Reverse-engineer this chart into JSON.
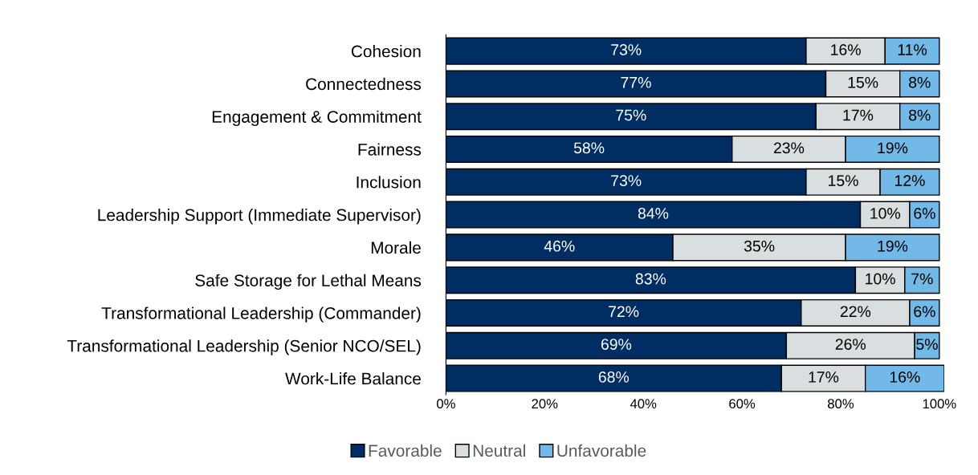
{
  "chart_data": {
    "type": "bar",
    "orientation": "horizontal",
    "stacked": true,
    "categories": [
      "Cohesion",
      "Connectedness",
      "Engagement & Commitment",
      "Fairness",
      "Inclusion",
      "Leadership Support (Immediate Supervisor)",
      "Morale",
      "Safe Storage for Lethal Means",
      "Transformational Leadership (Commander)",
      "Transformational Leadership (Senior NCO/SEL)",
      "Work-Life Balance"
    ],
    "series": [
      {
        "name": "Favorable",
        "color": "#002d62",
        "values": [
          73,
          77,
          75,
          58,
          73,
          84,
          46,
          83,
          72,
          69,
          68
        ],
        "value_labels": [
          "73%",
          "77%",
          "75%",
          "58%",
          "73%",
          "84%",
          "46%",
          "83%",
          "72%",
          "69%",
          "68%"
        ]
      },
      {
        "name": "Neutral",
        "color": "#d9dfe1",
        "values": [
          16,
          15,
          17,
          23,
          15,
          10,
          35,
          10,
          22,
          26,
          17
        ],
        "value_labels": [
          "16%",
          "15%",
          "17%",
          "23%",
          "15%",
          "10%",
          "35%",
          "10%",
          "22%",
          "26%",
          "17%"
        ]
      },
      {
        "name": "Unfavorable",
        "color": "#73b9e8",
        "values": [
          11,
          8,
          8,
          19,
          12,
          6,
          19,
          7,
          6,
          5,
          16
        ],
        "value_labels": [
          "11%",
          "8%",
          "8%",
          "19%",
          "12%",
          "6%",
          "19%",
          "7%",
          "6%",
          "5%",
          "16%"
        ]
      }
    ],
    "xlim": [
      0,
      101
    ],
    "xticks": [
      {
        "value": 0,
        "label": "0%"
      },
      {
        "value": 20,
        "label": "20%"
      },
      {
        "value": 40,
        "label": "40%"
      },
      {
        "value": 60,
        "label": "60%"
      },
      {
        "value": 80,
        "label": "80%"
      },
      {
        "value": 100,
        "label": "100%"
      }
    ],
    "grid": false,
    "legend": "bottom"
  }
}
